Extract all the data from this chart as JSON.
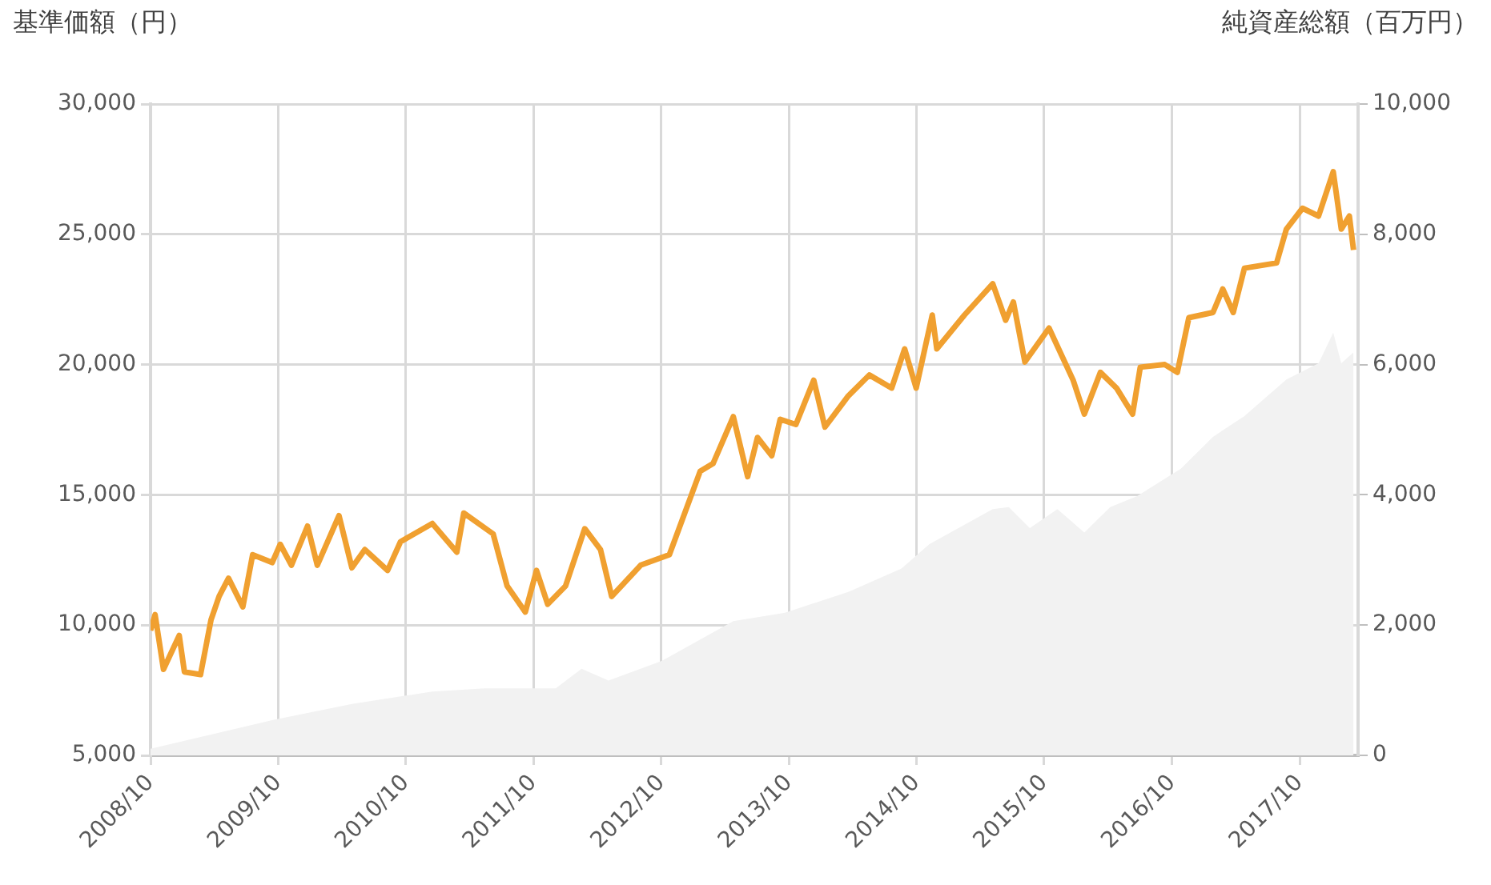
{
  "chart_data": {
    "type": "line",
    "ylabel": "基準価額（円）",
    "y2label": "純資産総額（百万円）",
    "xlim": [
      "2008-10-01",
      "2018-03-17"
    ],
    "xticks": [
      {
        "value": "2008-10-01",
        "label": "2008/10"
      },
      {
        "value": "2009-10-01",
        "label": "2009/10"
      },
      {
        "value": "2010-10-01",
        "label": "2010/10"
      },
      {
        "value": "2011-10-01",
        "label": "2011/10"
      },
      {
        "value": "2012-10-01",
        "label": "2012/10"
      },
      {
        "value": "2013-10-01",
        "label": "2013/10"
      },
      {
        "value": "2014-10-01",
        "label": "2014/10"
      },
      {
        "value": "2015-10-01",
        "label": "2015/10"
      },
      {
        "value": "2016-10-01",
        "label": "2016/10"
      },
      {
        "value": "2017-10-01",
        "label": "2017/10"
      }
    ],
    "ylim": [
      5000,
      30000
    ],
    "yticks": [
      {
        "value": 5000,
        "label": "5,000"
      },
      {
        "value": 10000,
        "label": "10,000"
      },
      {
        "value": 15000,
        "label": "15,000"
      },
      {
        "value": 20000,
        "label": "20,000"
      },
      {
        "value": 25000,
        "label": "25,000"
      },
      {
        "value": 30000,
        "label": "30,000"
      }
    ],
    "y2lim": [
      0,
      10000
    ],
    "y2ticks": [
      0,
      {
        "value": 2000,
        "label": "2,000"
      },
      {
        "value": 4000,
        "label": "4,000"
      },
      {
        "value": 6000,
        "label": "6,000"
      },
      {
        "value": 8000,
        "label": "8,000"
      },
      {
        "value": 10000,
        "label": "10,000"
      }
    ],
    "grid": true,
    "legend": false,
    "marker": "none",
    "line_style": "solid",
    "series": [
      {
        "type": "area",
        "axis": "y2",
        "color": "#f2f2f2",
        "x": [
          "2008-10-01",
          "2009-09-14",
          "2010-04-30",
          "2010-12-16",
          "2011-05-15",
          "2011-12-04",
          "2012-02-16",
          "2012-05-03",
          "2012-10-02",
          "2013-04-25",
          "2013-09-20",
          "2014-03-20",
          "2014-08-19",
          "2014-11-06",
          "2015-05-07",
          "2015-06-22",
          "2015-08-21",
          "2015-11-08",
          "2016-01-24",
          "2016-04-07",
          "2016-06-23",
          "2016-10-26",
          "2017-01-26",
          "2017-04-26",
          "2017-08-24",
          "2017-11-24",
          "2018-01-05",
          "2018-01-28",
          "2018-03-04"
        ],
        "values": [
          100,
          540,
          790,
          980,
          1030,
          1030,
          1330,
          1150,
          1450,
          2060,
          2190,
          2510,
          2870,
          3240,
          3780,
          3810,
          3490,
          3780,
          3420,
          3810,
          3980,
          4400,
          4890,
          5210,
          5770,
          6020,
          6490,
          6020,
          6190
        ]
      },
      {
        "type": "line",
        "axis": "y",
        "color": "#f0a030",
        "x": [
          "2008-10-01",
          "2008-10-14",
          "2008-11-07",
          "2008-12-22",
          "2009-01-06",
          "2009-02-21",
          "2009-03-23",
          "2009-04-15",
          "2009-05-12",
          "2009-06-22",
          "2009-07-20",
          "2009-09-14",
          "2009-10-07",
          "2009-11-08",
          "2009-12-24",
          "2010-01-21",
          "2010-03-24",
          "2010-04-30",
          "2010-06-06",
          "2010-08-10",
          "2010-09-16",
          "2010-12-16",
          "2011-02-24",
          "2011-03-16",
          "2011-06-08",
          "2011-07-18",
          "2011-09-08",
          "2011-10-10",
          "2011-11-11",
          "2012-01-01",
          "2012-02-25",
          "2012-04-10",
          "2012-05-12",
          "2012-08-03",
          "2012-10-24",
          "2013-01-20",
          "2013-02-26",
          "2013-04-25",
          "2013-06-05",
          "2013-07-03",
          "2013-08-13",
          "2013-09-06",
          "2013-10-21",
          "2013-12-11",
          "2014-01-12",
          "2014-03-20",
          "2014-05-19",
          "2014-07-22",
          "2014-08-28",
          "2014-09-30",
          "2014-11-15",
          "2014-11-28",
          "2015-02-15",
          "2015-05-07",
          "2015-06-13",
          "2015-07-05",
          "2015-08-07",
          "2015-10-15",
          "2015-12-23",
          "2016-01-24",
          "2016-03-10",
          "2016-04-25",
          "2016-06-10",
          "2016-07-02",
          "2016-09-10",
          "2016-10-16",
          "2016-11-18",
          "2017-01-26",
          "2017-02-23",
          "2017-03-25",
          "2017-04-26",
          "2017-07-27",
          "2017-08-24",
          "2017-10-09",
          "2017-11-24",
          "2018-01-05",
          "2018-01-28",
          "2018-02-20",
          "2018-03-04"
        ],
        "values": [
          9800,
          10400,
          8300,
          9600,
          8200,
          8100,
          10200,
          11100,
          11800,
          10700,
          12700,
          12400,
          13100,
          12300,
          13800,
          12300,
          14200,
          12200,
          12900,
          12100,
          13200,
          13900,
          12800,
          14300,
          13500,
          11500,
          10500,
          12100,
          10800,
          11500,
          13700,
          12900,
          11100,
          12300,
          12700,
          15900,
          16200,
          18000,
          15700,
          17200,
          16500,
          17900,
          17700,
          19400,
          17600,
          18800,
          19600,
          19100,
          20600,
          19100,
          21900,
          20600,
          21900,
          23100,
          21700,
          22400,
          20100,
          21400,
          19400,
          18100,
          19700,
          19100,
          18100,
          19900,
          20000,
          19700,
          21800,
          22000,
          22900,
          22000,
          23700,
          23900,
          25200,
          26000,
          25700,
          27400,
          25200,
          25700,
          24400
        ]
      }
    ]
  }
}
